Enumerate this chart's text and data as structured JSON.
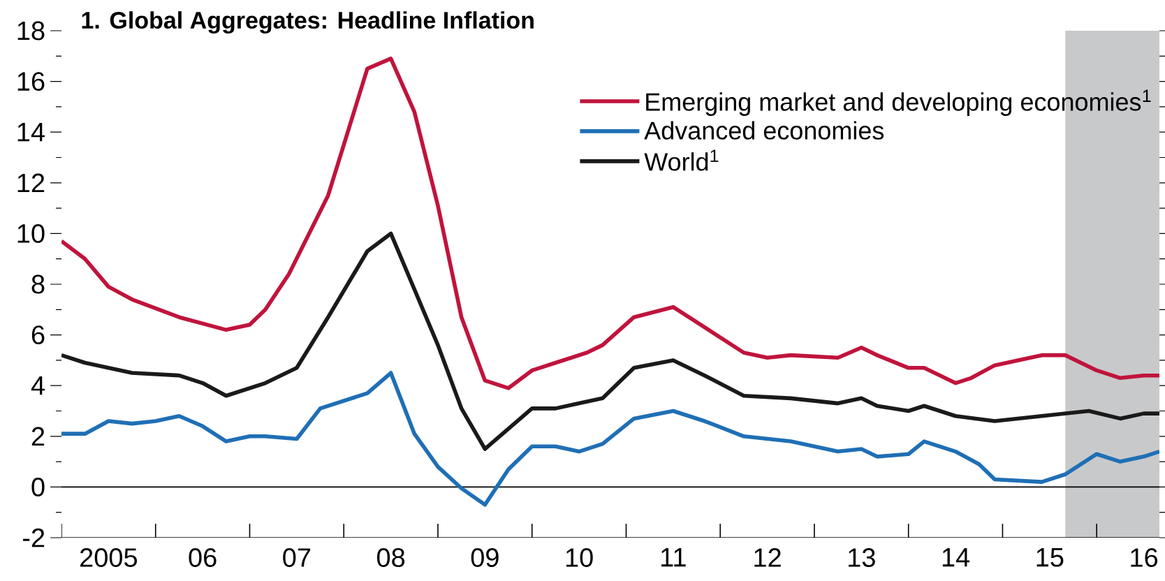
{
  "chart_data": {
    "type": "line",
    "title": "1. Global Aggregates: Headline Inflation",
    "xlim": [
      "2005-01",
      "2016-09"
    ],
    "ylim": [
      -2,
      18
    ],
    "xticks": [
      {
        "value": "2005-07",
        "label": "2005"
      },
      {
        "value": "2006-07",
        "label": "06"
      },
      {
        "value": "2007-07",
        "label": "07"
      },
      {
        "value": "2008-07",
        "label": "08"
      },
      {
        "value": "2009-07",
        "label": "09"
      },
      {
        "value": "2010-07",
        "label": "10"
      },
      {
        "value": "2011-07",
        "label": "11"
      },
      {
        "value": "2012-07",
        "label": "12"
      },
      {
        "value": "2013-07",
        "label": "13"
      },
      {
        "value": "2014-07",
        "label": "14"
      },
      {
        "value": "2015-07",
        "label": "15"
      },
      {
        "value": "2016-07",
        "label": "16"
      },
      {
        "value": "2005-01",
        "label": null
      },
      {
        "value": "2006-01",
        "label": null
      },
      {
        "value": "2007-01",
        "label": null
      },
      {
        "value": "2008-01",
        "label": null
      },
      {
        "value": "2009-01",
        "label": null
      },
      {
        "value": "2010-01",
        "label": null
      },
      {
        "value": "2011-01",
        "label": null
      },
      {
        "value": "2012-01",
        "label": null
      },
      {
        "value": "2013-01",
        "label": null
      },
      {
        "value": "2014-01",
        "label": null
      },
      {
        "value": "2015-01",
        "label": null
      },
      {
        "value": "2016-01",
        "label": null
      }
    ],
    "yticks": [
      -2,
      0,
      2,
      4,
      6,
      8,
      10,
      12,
      14,
      16,
      18,
      {
        "value": -1,
        "label": null
      },
      {
        "value": 1,
        "label": null
      },
      {
        "value": 3,
        "label": null
      },
      {
        "value": 5,
        "label": null
      },
      {
        "value": 7,
        "label": null
      },
      {
        "value": 9,
        "label": null
      },
      {
        "value": 11,
        "label": null
      },
      {
        "value": 13,
        "label": null
      },
      {
        "value": 15,
        "label": null
      },
      {
        "value": 17,
        "label": null
      }
    ],
    "legend": "top right",
    "marker": "none",
    "line_style": "solid",
    "ref_lines": [
      {
        "axis": "y",
        "value": 0,
        "color": "#000000"
      }
    ],
    "bands": [
      {
        "axis": "x",
        "from": "2015-09",
        "to": "2016-09",
        "color": "#c8c9cb"
      }
    ],
    "series": [
      {
        "name": "Emerging market and developing economies$^{1}$",
        "color": "#c0143c",
        "x": [
          "2005-01",
          "2005-04",
          "2005-07",
          "2005-10",
          "2006-04",
          "2006-10",
          "2007-01",
          "2007-03",
          "2007-06",
          "2007-11",
          "2008-04",
          "2008-07",
          "2008-10",
          "2009-01",
          "2009-04",
          "2009-07",
          "2009-10",
          "2010-01",
          "2010-04",
          "2010-08",
          "2010-10",
          "2011-02",
          "2011-07",
          "2011-11",
          "2012-04",
          "2012-07",
          "2012-10",
          "2013-04",
          "2013-07",
          "2013-09",
          "2014-01",
          "2014-03",
          "2014-07",
          "2014-09",
          "2014-12",
          "2015-06",
          "2015-09",
          "2016-01",
          "2016-04",
          "2016-07",
          "2016-09"
        ],
        "values": [
          9.7,
          9.0,
          7.9,
          7.4,
          6.7,
          6.2,
          6.4,
          7.0,
          8.4,
          11.5,
          16.5,
          16.9,
          14.8,
          11.1,
          6.7,
          4.2,
          3.9,
          4.6,
          4.9,
          5.3,
          5.6,
          6.7,
          7.1,
          6.3,
          5.3,
          5.1,
          5.2,
          5.1,
          5.5,
          5.2,
          4.7,
          4.7,
          4.1,
          4.3,
          4.8,
          5.2,
          5.2,
          4.6,
          4.3,
          4.4,
          4.4
        ]
      },
      {
        "name": "Advanced economies",
        "color": "#1f6fb5",
        "x": [
          "2005-01",
          "2005-04",
          "2005-07",
          "2005-10",
          "2006-01",
          "2006-04",
          "2006-07",
          "2006-10",
          "2007-01",
          "2007-03",
          "2007-07",
          "2007-10",
          "2008-01",
          "2008-04",
          "2008-07",
          "2008-10",
          "2009-01",
          "2009-04",
          "2009-07",
          "2009-10",
          "2010-01",
          "2010-04",
          "2010-07",
          "2010-10",
          "2011-02",
          "2011-07",
          "2011-11",
          "2012-04",
          "2012-10",
          "2013-04",
          "2013-07",
          "2013-09",
          "2014-01",
          "2014-03",
          "2014-07",
          "2014-10",
          "2014-12",
          "2015-06",
          "2015-09",
          "2016-01",
          "2016-04",
          "2016-07",
          "2016-09"
        ],
        "values": [
          2.1,
          2.1,
          2.6,
          2.5,
          2.6,
          2.8,
          2.4,
          1.8,
          2.0,
          2.0,
          1.9,
          3.1,
          3.4,
          3.7,
          4.5,
          2.1,
          0.8,
          -0.05,
          -0.7,
          0.7,
          1.6,
          1.6,
          1.4,
          1.7,
          2.7,
          3.0,
          2.6,
          2.0,
          1.8,
          1.4,
          1.5,
          1.2,
          1.3,
          1.8,
          1.4,
          0.9,
          0.3,
          0.2,
          0.5,
          1.3,
          1.0,
          1.2,
          1.4
        ]
      },
      {
        "name": "World$^{1}$",
        "color": "#1a1a1a",
        "x": [
          "2005-01",
          "2005-04",
          "2005-10",
          "2006-04",
          "2006-07",
          "2006-10",
          "2007-03",
          "2007-07",
          "2007-11",
          "2008-04",
          "2008-07",
          "2008-10",
          "2009-01",
          "2009-04",
          "2009-07",
          "2009-10",
          "2010-01",
          "2010-04",
          "2010-07",
          "2010-10",
          "2011-02",
          "2011-07",
          "2011-11",
          "2012-04",
          "2012-10",
          "2013-04",
          "2013-07",
          "2013-09",
          "2014-01",
          "2014-03",
          "2014-07",
          "2014-12",
          "2015-06",
          "2015-12",
          "2016-04",
          "2016-07",
          "2016-09"
        ],
        "values": [
          5.2,
          4.9,
          4.5,
          4.4,
          4.1,
          3.6,
          4.1,
          4.7,
          6.7,
          9.3,
          10.0,
          7.8,
          5.6,
          3.1,
          1.5,
          2.3,
          3.1,
          3.1,
          3.3,
          3.5,
          4.7,
          5.0,
          4.4,
          3.6,
          3.5,
          3.3,
          3.5,
          3.2,
          3.0,
          3.2,
          2.8,
          2.6,
          2.8,
          3.0,
          2.7,
          2.9,
          2.9
        ]
      }
    ]
  }
}
